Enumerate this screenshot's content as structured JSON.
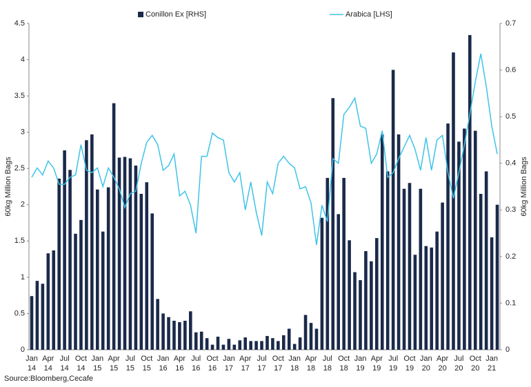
{
  "chart_data": {
    "type": "bar_line",
    "series": [
      {
        "name": "Conillon Ex [RHS]",
        "type": "bar",
        "axis": "y",
        "color": "#1b2a4a",
        "values": [
          0.74,
          0.95,
          0.91,
          1.33,
          1.37,
          2.36,
          2.75,
          2.48,
          1.6,
          1.79,
          2.89,
          2.97,
          2.21,
          1.63,
          2.24,
          3.4,
          2.65,
          2.66,
          2.64,
          2.54,
          2.15,
          2.31,
          1.88,
          0.7,
          0.5,
          0.45,
          0.4,
          0.38,
          0.4,
          0.53,
          0.24,
          0.25,
          0.16,
          0.07,
          0.18,
          0.07,
          0.15,
          0.07,
          0.13,
          0.17,
          0.12,
          0.12,
          0.12,
          0.19,
          0.16,
          0.12,
          0.2,
          0.29,
          0.08,
          0.17,
          0.48,
          0.37,
          0.29,
          1.82,
          2.37,
          3.47,
          1.87,
          2.37,
          1.51,
          1.07,
          0.96,
          1.36,
          1.22,
          1.54,
          2.97,
          2.46,
          3.86,
          2.97,
          2.22,
          2.3,
          1.31,
          2.22,
          1.43,
          1.41,
          1.63,
          2.03,
          3.12,
          4.1,
          2.87,
          3.05,
          4.34,
          3.02,
          2.15,
          2.46,
          1.55,
          2.0
        ]
      },
      {
        "name": "Arabica [LHS]",
        "type": "line",
        "axis": "y2",
        "color": "#3dc3e8",
        "values": [
          0.37,
          0.39,
          0.375,
          0.405,
          0.39,
          0.355,
          0.355,
          0.37,
          0.375,
          0.44,
          0.385,
          0.38,
          0.39,
          0.35,
          0.39,
          0.37,
          0.345,
          0.305,
          0.335,
          0.34,
          0.4,
          0.445,
          0.46,
          0.44,
          0.385,
          0.395,
          0.42,
          0.33,
          0.34,
          0.31,
          0.25,
          0.415,
          0.415,
          0.465,
          0.455,
          0.45,
          0.38,
          0.36,
          0.38,
          0.3,
          0.36,
          0.295,
          0.245,
          0.36,
          0.335,
          0.4,
          0.415,
          0.4,
          0.39,
          0.345,
          0.35,
          0.315,
          0.225,
          0.31,
          0.275,
          0.41,
          0.4,
          0.505,
          0.52,
          0.54,
          0.48,
          0.475,
          0.4,
          0.42,
          0.47,
          0.37,
          0.38,
          0.41,
          0.435,
          0.46,
          0.43,
          0.385,
          0.455,
          0.385,
          0.45,
          0.46,
          0.38,
          0.325,
          0.38,
          0.44,
          0.505,
          0.575,
          0.635,
          0.565,
          0.48,
          0.42
        ]
      }
    ],
    "categories": [
      "Jan 14",
      null,
      null,
      "Apr 14",
      null,
      null,
      "Jul 14",
      null,
      null,
      "Oct 14",
      null,
      null,
      "Jan 15",
      null,
      null,
      "Apr 15",
      null,
      null,
      "Jul 15",
      null,
      null,
      "Oct 15",
      null,
      null,
      "Jan 16",
      null,
      null,
      "Apr 16",
      null,
      null,
      "Jul 16",
      null,
      null,
      "Oct 16",
      null,
      null,
      "Jan 17",
      null,
      null,
      "Apr 17",
      null,
      null,
      "Jul 17",
      null,
      null,
      "Oct 17",
      null,
      null,
      "Jan 18",
      null,
      null,
      "Apr 18",
      null,
      null,
      "Jul 18",
      null,
      null,
      "Oct 18",
      null,
      null,
      "Jan 19",
      null,
      null,
      "Apr 19",
      null,
      null,
      "Jul 19",
      null,
      null,
      "Oct 19",
      null,
      null,
      "Jan 20",
      null,
      null,
      "Apr 20",
      null,
      null,
      "Jul 20",
      null,
      null,
      "Oct 20",
      null,
      null,
      "Jan 21",
      null
    ],
    "ylabel": "60kg Million Bags",
    "y2label": "60kg Million Bags",
    "ylim": [
      0,
      4.5
    ],
    "yticks": [
      0,
      0.5,
      1,
      1.5,
      2,
      2.5,
      3,
      3.5,
      4,
      4.5
    ],
    "y2lim": [
      0,
      0.7
    ],
    "y2ticks": [
      0,
      0.1,
      0.2,
      0.3,
      0.4,
      0.5,
      0.6,
      0.7
    ],
    "grid": false,
    "legend": "top",
    "source": "Source:Bloomberg,Cecafe"
  }
}
